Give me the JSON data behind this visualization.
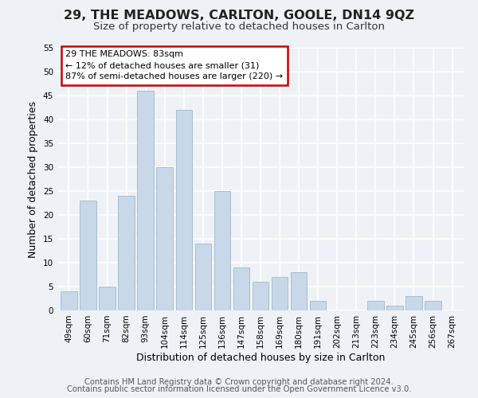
{
  "title": "29, THE MEADOWS, CARLTON, GOOLE, DN14 9QZ",
  "subtitle": "Size of property relative to detached houses in Carlton",
  "xlabel": "Distribution of detached houses by size in Carlton",
  "ylabel": "Number of detached properties",
  "categories": [
    "49sqm",
    "60sqm",
    "71sqm",
    "82sqm",
    "93sqm",
    "104sqm",
    "114sqm",
    "125sqm",
    "136sqm",
    "147sqm",
    "158sqm",
    "169sqm",
    "180sqm",
    "191sqm",
    "202sqm",
    "213sqm",
    "223sqm",
    "234sqm",
    "245sqm",
    "256sqm",
    "267sqm"
  ],
  "values": [
    4,
    23,
    5,
    24,
    46,
    30,
    42,
    14,
    25,
    9,
    6,
    7,
    8,
    2,
    0,
    0,
    2,
    1,
    3,
    2,
    0
  ],
  "bar_color": "#c8d8e8",
  "bar_edge_color": "#a8bece",
  "annotation_box_text": "29 THE MEADOWS: 83sqm\n← 12% of detached houses are smaller (31)\n87% of semi-detached houses are larger (220) →",
  "annotation_box_facecolor": "white",
  "annotation_box_edgecolor": "#cc0000",
  "ylim": [
    0,
    55
  ],
  "yticks": [
    0,
    5,
    10,
    15,
    20,
    25,
    30,
    35,
    40,
    45,
    50,
    55
  ],
  "footer_line1": "Contains HM Land Registry data © Crown copyright and database right 2024.",
  "footer_line2": "Contains public sector information licensed under the Open Government Licence v3.0.",
  "background_color": "#eef2f7",
  "grid_color": "white",
  "title_fontsize": 11.5,
  "subtitle_fontsize": 9.5,
  "axis_label_fontsize": 9,
  "tick_fontsize": 7.5,
  "footer_fontsize": 7.2
}
